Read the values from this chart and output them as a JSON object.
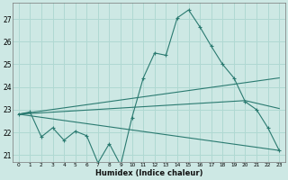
{
  "xlabel": "Humidex (Indice chaleur)",
  "bg_color": "#cde8e4",
  "grid_color": "#b0d8d2",
  "line_color": "#2a7a70",
  "xlim": [
    -0.5,
    23.5
  ],
  "ylim": [
    20.7,
    27.7
  ],
  "xticks": [
    0,
    1,
    2,
    3,
    4,
    5,
    6,
    7,
    8,
    9,
    10,
    11,
    12,
    13,
    14,
    15,
    16,
    17,
    18,
    19,
    20,
    21,
    22,
    23
  ],
  "yticks": [
    21,
    22,
    23,
    24,
    25,
    26,
    27
  ],
  "series1_x": [
    0,
    1,
    2,
    3,
    4,
    5,
    6,
    7,
    8,
    9,
    10,
    11,
    12,
    13,
    14,
    15,
    16,
    17,
    18,
    19,
    20,
    21,
    22,
    23
  ],
  "series1_y": [
    22.8,
    22.9,
    21.8,
    22.2,
    21.65,
    22.05,
    21.85,
    20.65,
    21.5,
    20.55,
    22.65,
    24.4,
    25.5,
    25.4,
    27.05,
    27.4,
    26.65,
    25.8,
    25.0,
    24.4,
    23.35,
    23.0,
    22.2,
    21.2
  ],
  "line1_x": [
    0,
    23
  ],
  "line1_y": [
    22.8,
    24.4
  ],
  "line2_x": [
    0,
    20,
    23
  ],
  "line2_y": [
    22.8,
    23.4,
    23.05
  ],
  "line3_x": [
    0,
    23
  ],
  "line3_y": [
    22.8,
    21.2
  ]
}
